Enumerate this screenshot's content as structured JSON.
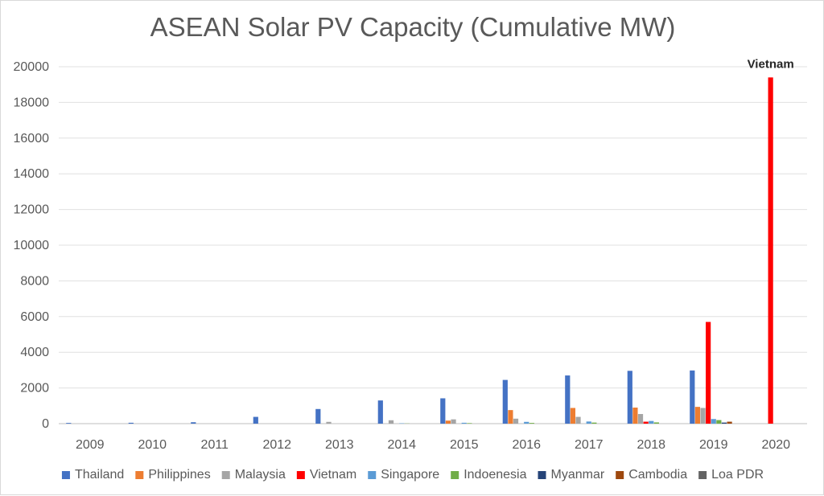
{
  "chart_data": {
    "type": "bar",
    "title": "ASEAN Solar PV Capacity (Cumulative MW)",
    "xlabel": "",
    "ylabel": "",
    "ylim": [
      0,
      20000
    ],
    "y_ticks": [
      0,
      2000,
      4000,
      6000,
      8000,
      10000,
      12000,
      14000,
      16000,
      18000,
      20000
    ],
    "grid": true,
    "legend_position": "bottom",
    "categories": [
      "2009",
      "2010",
      "2011",
      "2012",
      "2013",
      "2014",
      "2015",
      "2016",
      "2017",
      "2018",
      "2019",
      "2020"
    ],
    "series": [
      {
        "name": "Thailand",
        "color": "#4472C4",
        "values": [
          40,
          50,
          80,
          380,
          820,
          1300,
          1420,
          2450,
          2700,
          2960,
          2980,
          0
        ]
      },
      {
        "name": "Philippines",
        "color": "#ED7D31",
        "values": [
          0,
          0,
          0,
          0,
          0,
          0,
          170,
          760,
          880,
          900,
          940,
          0
        ]
      },
      {
        "name": "Malaysia",
        "color": "#A5A5A5",
        "values": [
          0,
          0,
          0,
          0,
          100,
          190,
          240,
          280,
          380,
          540,
          880,
          0
        ]
      },
      {
        "name": "Vietnam",
        "color": "#FF0000",
        "values": [
          0,
          0,
          0,
          0,
          0,
          0,
          0,
          0,
          0,
          110,
          5700,
          19400
        ]
      },
      {
        "name": "Singapore",
        "color": "#5B9BD5",
        "values": [
          0,
          0,
          0,
          0,
          0,
          20,
          50,
          100,
          120,
          150,
          260,
          0
        ]
      },
      {
        "name": "Indoenesia",
        "color": "#70AD47",
        "values": [
          0,
          0,
          0,
          0,
          0,
          10,
          30,
          40,
          60,
          70,
          200,
          0
        ]
      },
      {
        "name": "Myanmar",
        "color": "#264478",
        "values": [
          0,
          0,
          0,
          0,
          0,
          0,
          0,
          0,
          0,
          0,
          60,
          0
        ]
      },
      {
        "name": "Cambodia",
        "color": "#9E480E",
        "values": [
          0,
          0,
          0,
          0,
          0,
          0,
          0,
          0,
          0,
          0,
          110,
          0
        ]
      },
      {
        "name": "Loa PDR",
        "color": "#636363",
        "values": [
          0,
          0,
          0,
          0,
          0,
          0,
          0,
          0,
          0,
          0,
          0,
          0
        ]
      }
    ],
    "annotations": [
      {
        "text": "Vietnam",
        "category": "2020",
        "series": "Vietnam"
      }
    ]
  }
}
